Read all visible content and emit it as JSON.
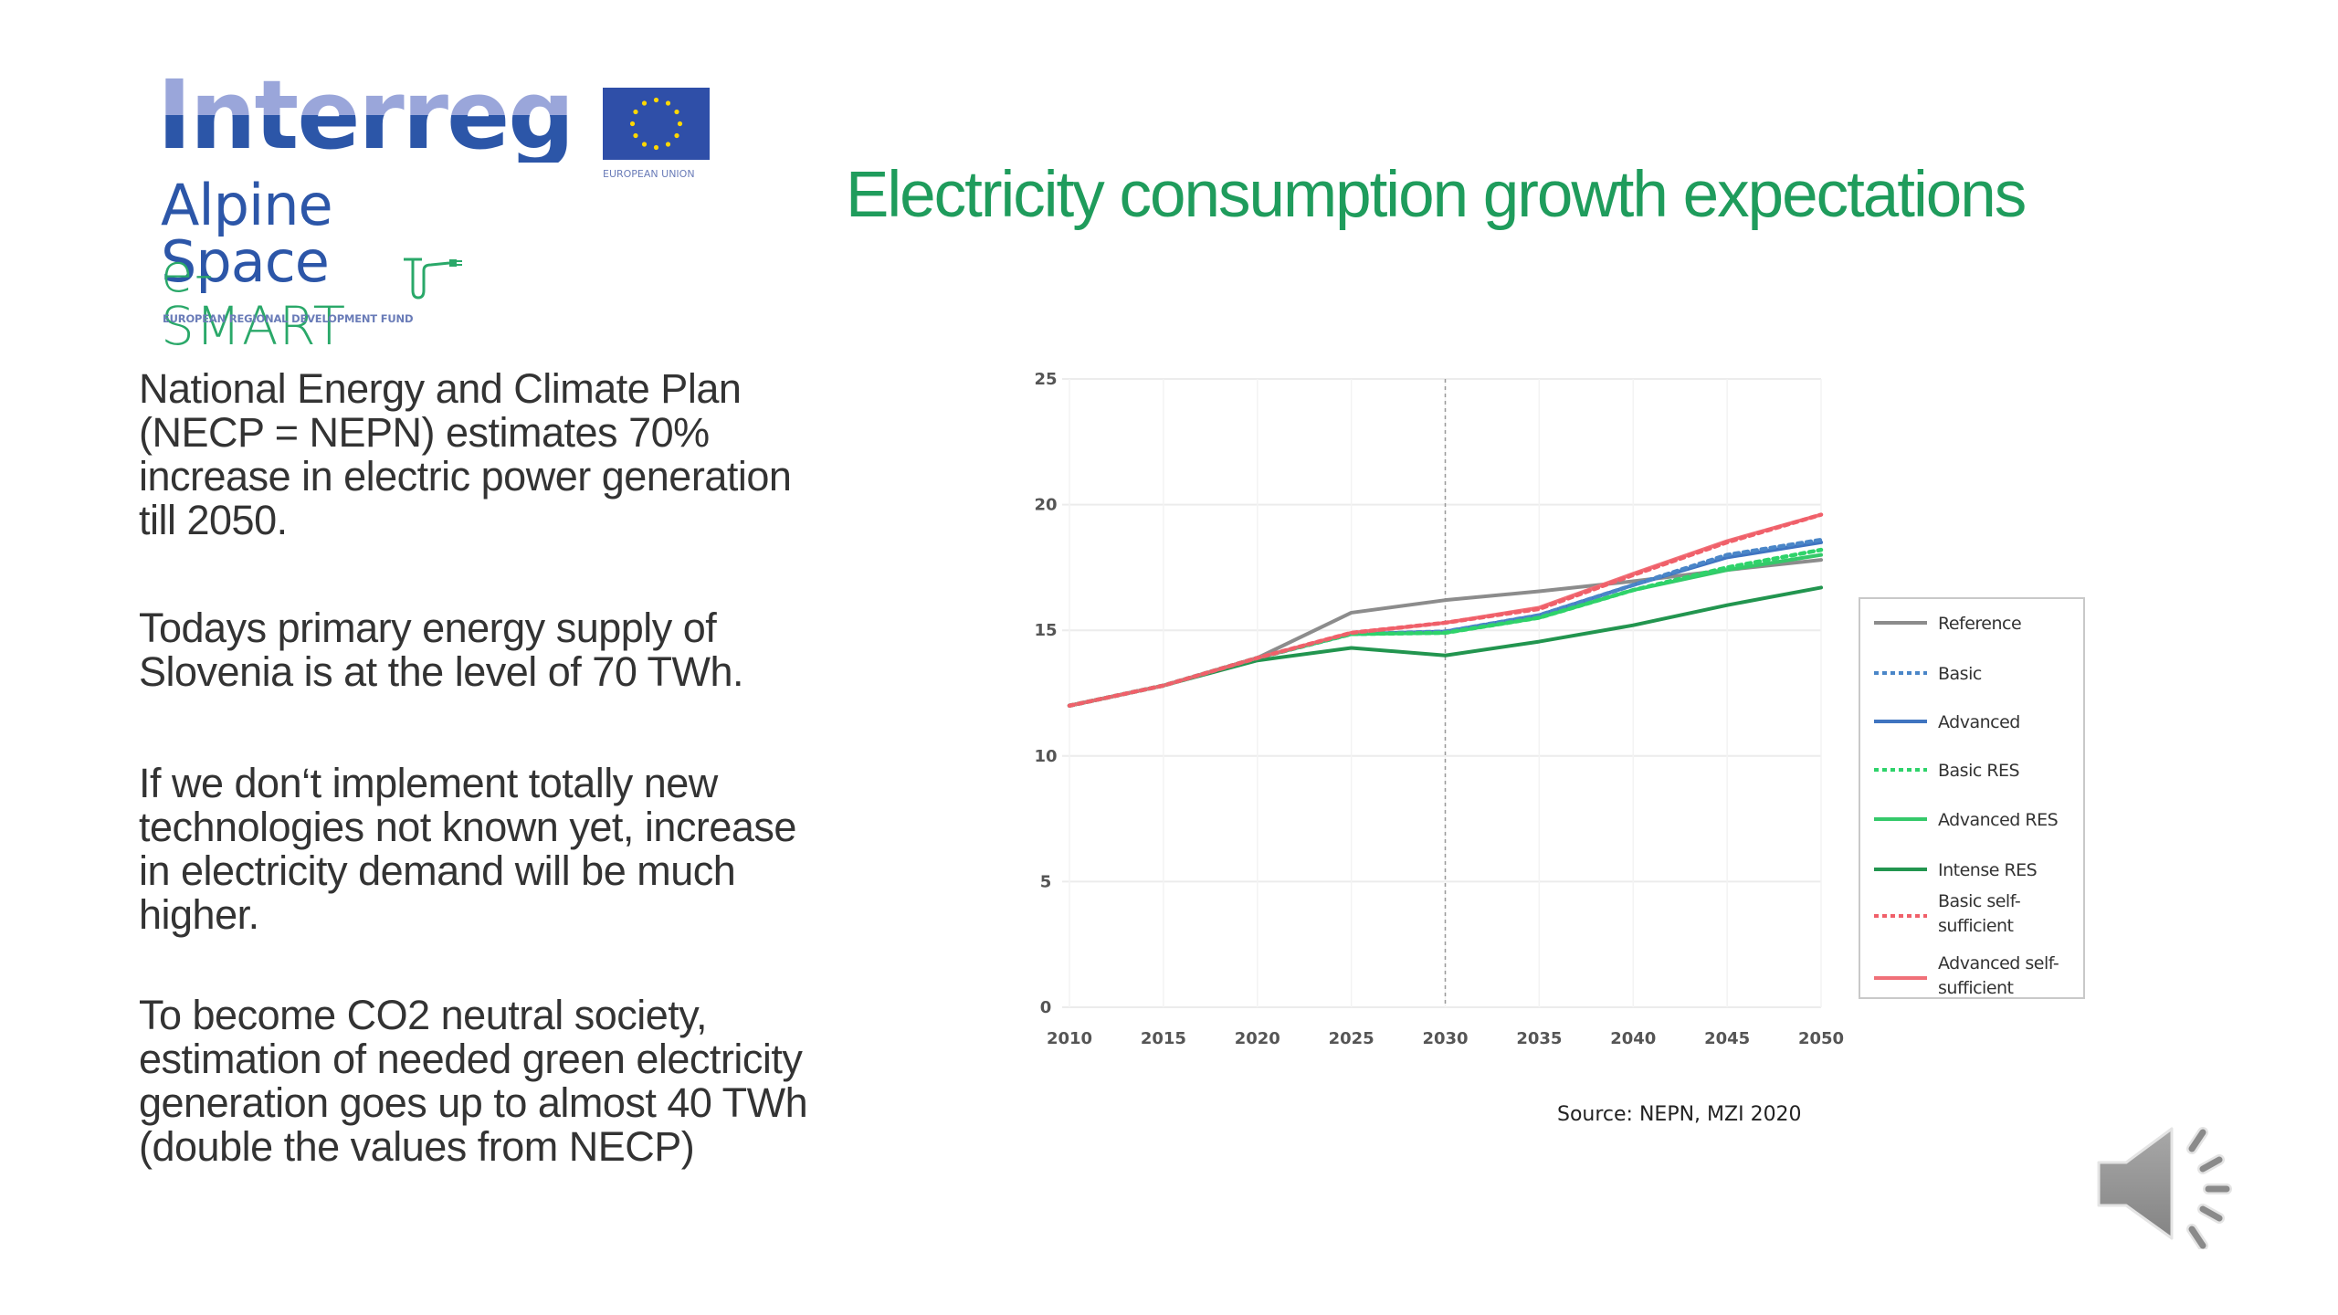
{
  "logo": {
    "program": "Interreg",
    "region": "Alpine Space",
    "project": "e-SMART",
    "fund": "EUROPEAN REGIONAL DEVELOPMENT FUND",
    "eu_label": "EUROPEAN UNION",
    "colors": {
      "interreg_top": "#9aa6da",
      "interreg_bottom": "#2c56a8",
      "esmart": "#2aa869",
      "eu_blue": "#2f4fa8",
      "eu_star": "#ffd700"
    }
  },
  "title": "Electricity consumption growth expectations",
  "title_color": "#1f9c5c",
  "paragraphs": [
    [
      "National Energy and Climate Plan",
      "(NECP = NEPN) estimates 70%",
      "increase in electric power generation",
      "till 2050."
    ],
    [
      "Todays primary energy supply of",
      "Slovenia is at the level of 70 TWh."
    ],
    [
      "If we don‘t implement totally new",
      "technologies not known yet, increase",
      "in electricity demand will be much",
      "higher."
    ],
    [
      "To become CO2 neutral society,",
      "estimation of needed green electricity",
      "generation goes up to almost 40 TWh",
      "(double the values from NECP)"
    ]
  ],
  "source": "Source: NEPN, MZI 2020",
  "audio_icon": "speaker-icon",
  "chart_data": {
    "type": "line",
    "title": "",
    "xlabel": "",
    "ylabel": "",
    "x": [
      2010,
      2015,
      2020,
      2025,
      2030,
      2035,
      2040,
      2045,
      2050
    ],
    "xlim": [
      2010,
      2050
    ],
    "ylim": [
      0,
      25
    ],
    "yticks": [
      0,
      5,
      10,
      15,
      20,
      25
    ],
    "xticks": [
      2010,
      2015,
      2020,
      2025,
      2030,
      2035,
      2040,
      2045,
      2050
    ],
    "grid": true,
    "reference_line_x": 2030,
    "legend_position": "right",
    "series": [
      {
        "name": "Reference",
        "color": "#8c8c8c",
        "dash": "solid",
        "values": [
          12.0,
          12.8,
          13.9,
          15.7,
          16.2,
          16.55,
          16.95,
          17.4,
          17.8
        ]
      },
      {
        "name": "Basic",
        "color": "#4a86c8",
        "dash": "dotted",
        "values": [
          12.0,
          12.8,
          13.9,
          14.85,
          14.95,
          15.6,
          16.8,
          18.0,
          18.6
        ]
      },
      {
        "name": "Advanced",
        "color": "#3f74c0",
        "dash": "solid",
        "values": [
          12.0,
          12.8,
          13.9,
          14.85,
          14.95,
          15.6,
          16.8,
          17.9,
          18.5
        ]
      },
      {
        "name": "Basic RES",
        "color": "#2ed36a",
        "dash": "dotted",
        "values": [
          12.0,
          12.8,
          13.9,
          14.85,
          14.9,
          15.5,
          16.6,
          17.5,
          18.2
        ]
      },
      {
        "name": "Advanced RES",
        "color": "#35c96a",
        "dash": "solid",
        "values": [
          12.0,
          12.8,
          13.9,
          14.85,
          14.9,
          15.5,
          16.6,
          17.4,
          18.0
        ]
      },
      {
        "name": "Intense RES",
        "color": "#22954f",
        "dash": "solid",
        "values": [
          12.0,
          12.8,
          13.8,
          14.3,
          14.0,
          14.55,
          15.2,
          16.0,
          16.7
        ]
      },
      {
        "name": "Basic self-sufficient",
        "color": "#f0606a",
        "dash": "dotted",
        "values": [
          12.0,
          12.8,
          13.9,
          14.9,
          15.3,
          15.85,
          17.2,
          18.5,
          19.6
        ]
      },
      {
        "name": "Advanced self-sufficient",
        "color": "#f07078",
        "dash": "solid",
        "values": [
          12.0,
          12.8,
          13.9,
          14.9,
          15.3,
          15.9,
          17.25,
          18.55,
          19.6
        ]
      }
    ],
    "legend_labels": [
      [
        "Reference"
      ],
      [
        "Basic"
      ],
      [
        "Advanced"
      ],
      [
        "Basic RES"
      ],
      [
        "Advanced RES"
      ],
      [
        "Intense RES"
      ],
      [
        "Basic self-",
        "sufficient"
      ],
      [
        "Advanced self-",
        "sufficient"
      ]
    ]
  }
}
